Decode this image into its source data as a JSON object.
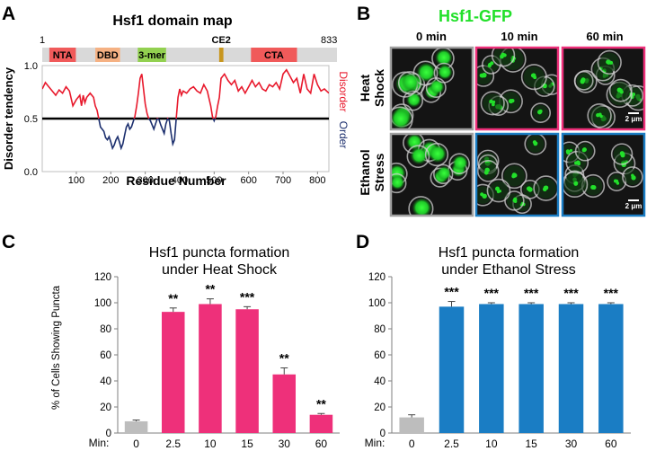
{
  "panels": {
    "A": {
      "letter": "A"
    },
    "B": {
      "letter": "B",
      "title": "Hsf1-GFP",
      "time_labels": [
        "0 min",
        "10 min",
        "60 min"
      ],
      "row_labels": [
        [
          "Heat",
          "Shock"
        ],
        [
          "Ethanol",
          "Stress"
        ]
      ],
      "scale_bar": "2 μm"
    },
    "C": {
      "letter": "C"
    },
    "D": {
      "letter": "D"
    }
  },
  "colors": {
    "disorder": "#e8192c",
    "order": "#1c2f6e",
    "heat": "#ee307a",
    "ethanol": "#1a7dc4",
    "control": "#bdbdbd",
    "gfp": "#22e02a",
    "frame_control": "#a0a0a0"
  },
  "domain_map": {
    "title": "Hsf1 domain map",
    "start_label": "1",
    "end_label": "833",
    "length": 833,
    "domains": [
      {
        "name": "NTA",
        "start": 20,
        "end": 95,
        "color": "#f05a5a"
      },
      {
        "name": "DBD",
        "start": 150,
        "end": 220,
        "color": "#f5b183"
      },
      {
        "name": "3-mer",
        "start": 270,
        "end": 350,
        "color": "#92d050"
      },
      {
        "name": "CE2",
        "start": 500,
        "end": 512,
        "color": "#c8961e"
      },
      {
        "name": "CTA",
        "start": 590,
        "end": 720,
        "color": "#f05a5a"
      }
    ]
  },
  "chart_data": [
    {
      "type": "line",
      "title": "",
      "xlabel": "Residue Number",
      "ylabel": "Disorder tendency",
      "xlim": [
        1,
        833
      ],
      "ylim": [
        0,
        1
      ],
      "xticks": [
        100,
        200,
        300,
        400,
        500,
        600,
        700,
        800
      ],
      "yticks": [
        "0.0",
        "0.5",
        "1.0"
      ],
      "threshold": 0.5,
      "right_labels": {
        "upper": "Disorder",
        "lower": "Order"
      },
      "series": [
        {
          "name": "Disorder tendency",
          "x": [
            1,
            10,
            20,
            30,
            40,
            50,
            60,
            70,
            80,
            90,
            100,
            110,
            115,
            120,
            125,
            130,
            140,
            150,
            155,
            160,
            165,
            170,
            175,
            180,
            185,
            190,
            195,
            200,
            205,
            210,
            215,
            220,
            225,
            230,
            235,
            240,
            245,
            250,
            255,
            260,
            265,
            270,
            275,
            280,
            285,
            290,
            295,
            300,
            305,
            310,
            315,
            320,
            325,
            330,
            335,
            340,
            345,
            350,
            355,
            360,
            365,
            370,
            375,
            380,
            385,
            390,
            395,
            400,
            405,
            410,
            420,
            430,
            440,
            450,
            460,
            470,
            480,
            490,
            495,
            500,
            505,
            510,
            515,
            520,
            530,
            540,
            550,
            560,
            570,
            580,
            590,
            600,
            610,
            620,
            630,
            640,
            650,
            660,
            670,
            680,
            690,
            700,
            710,
            720,
            730,
            740,
            750,
            760,
            770,
            780,
            790,
            800,
            810,
            820,
            833
          ],
          "y": [
            0.78,
            0.84,
            0.8,
            0.76,
            0.72,
            0.77,
            0.74,
            0.8,
            0.76,
            0.62,
            0.68,
            0.72,
            0.62,
            0.72,
            0.65,
            0.7,
            0.74,
            0.7,
            0.62,
            0.58,
            0.5,
            0.42,
            0.4,
            0.38,
            0.32,
            0.3,
            0.33,
            0.28,
            0.22,
            0.25,
            0.3,
            0.33,
            0.28,
            0.22,
            0.26,
            0.34,
            0.42,
            0.45,
            0.4,
            0.42,
            0.47,
            0.52,
            0.62,
            0.74,
            0.88,
            0.92,
            0.78,
            0.64,
            0.55,
            0.5,
            0.48,
            0.44,
            0.4,
            0.45,
            0.5,
            0.49,
            0.44,
            0.4,
            0.36,
            0.45,
            0.5,
            0.48,
            0.36,
            0.26,
            0.3,
            0.5,
            0.7,
            0.78,
            0.72,
            0.76,
            0.74,
            0.78,
            0.8,
            0.76,
            0.74,
            0.82,
            0.76,
            0.62,
            0.52,
            0.48,
            0.52,
            0.62,
            0.7,
            0.88,
            0.92,
            0.86,
            0.82,
            0.86,
            0.76,
            0.8,
            0.74,
            0.8,
            0.86,
            0.8,
            0.84,
            0.78,
            0.76,
            0.82,
            0.8,
            0.84,
            0.78,
            0.92,
            0.96,
            0.9,
            0.84,
            0.88,
            0.74,
            0.92,
            0.78,
            0.74,
            0.92,
            0.82,
            0.76,
            0.78,
            0.74
          ]
        }
      ]
    },
    {
      "type": "bar",
      "title_lines": [
        "Hsf1 puncta formation",
        "under Heat Shock"
      ],
      "ylabel": "% of Cells Showing Puncta",
      "xlabel_prefix": "Min:",
      "categories": [
        "0",
        "2.5",
        "10",
        "15",
        "30",
        "60"
      ],
      "values": [
        9,
        93,
        99,
        95,
        45,
        14
      ],
      "errors": [
        1,
        3,
        4,
        2,
        5,
        1
      ],
      "significance": [
        "",
        "**",
        "**",
        "***",
        "**",
        "**"
      ],
      "ylim": [
        0,
        120
      ],
      "yticks": [
        0,
        20,
        40,
        60,
        80,
        100,
        120
      ]
    },
    {
      "type": "bar",
      "title_lines": [
        "Hsf1 puncta formation",
        "under Ethanol Stress"
      ],
      "ylabel": "",
      "xlabel_prefix": "Min:",
      "categories": [
        "0",
        "2.5",
        "10",
        "15",
        "30",
        "60"
      ],
      "values": [
        12,
        97,
        99,
        99,
        99,
        99
      ],
      "errors": [
        2,
        4,
        1,
        1,
        1,
        1
      ],
      "significance": [
        "",
        "***",
        "***",
        "***",
        "***",
        "***"
      ],
      "ylim": [
        0,
        120
      ],
      "yticks": [
        0,
        20,
        40,
        60,
        80,
        100,
        120
      ]
    }
  ]
}
